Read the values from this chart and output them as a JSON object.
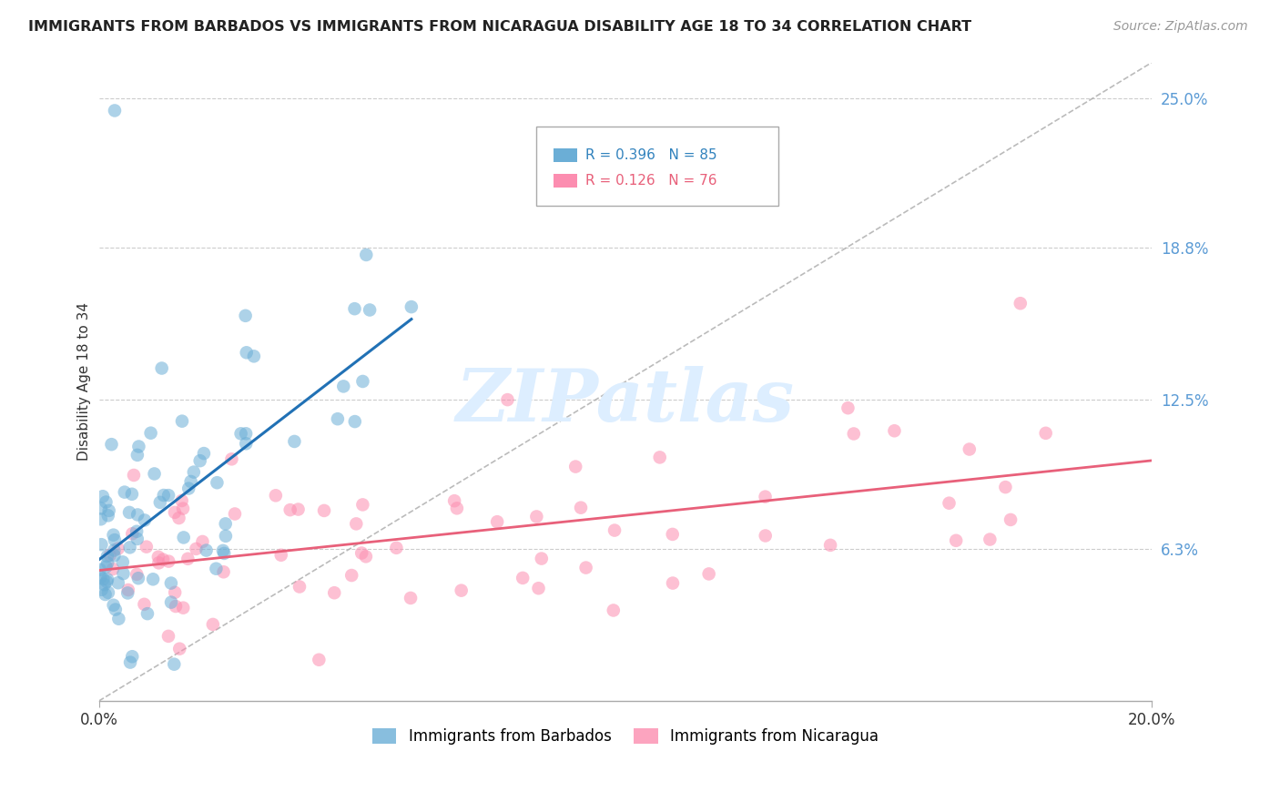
{
  "title": "IMMIGRANTS FROM BARBADOS VS IMMIGRANTS FROM NICARAGUA DISABILITY AGE 18 TO 34 CORRELATION CHART",
  "source": "Source: ZipAtlas.com",
  "ylabel": "Disability Age 18 to 34",
  "barbados_label": "Immigrants from Barbados",
  "nicaragua_label": "Immigrants from Nicaragua",
  "legend_R_barbados": "R = 0.396",
  "legend_N_barbados": "N = 85",
  "legend_R_nicaragua": "R = 0.126",
  "legend_N_nicaragua": "N = 76",
  "barbados_color": "#6baed6",
  "nicaragua_color": "#fc8db0",
  "barbados_line_color": "#2171b5",
  "nicaragua_line_color": "#e8607a",
  "ref_line_color": "#aaaaaa",
  "legend_text_color_blue": "#3182bd",
  "legend_text_color_pink": "#e8607a",
  "ytick_labels": [
    "6.3%",
    "12.5%",
    "18.8%",
    "25.0%"
  ],
  "ytick_values": [
    0.063,
    0.125,
    0.188,
    0.25
  ],
  "xlim": [
    0.0,
    0.2
  ],
  "ylim": [
    0.0,
    0.265
  ],
  "watermark_text": "ZIPatlas",
  "barbados_seed": 42,
  "nicaragua_seed": 77
}
